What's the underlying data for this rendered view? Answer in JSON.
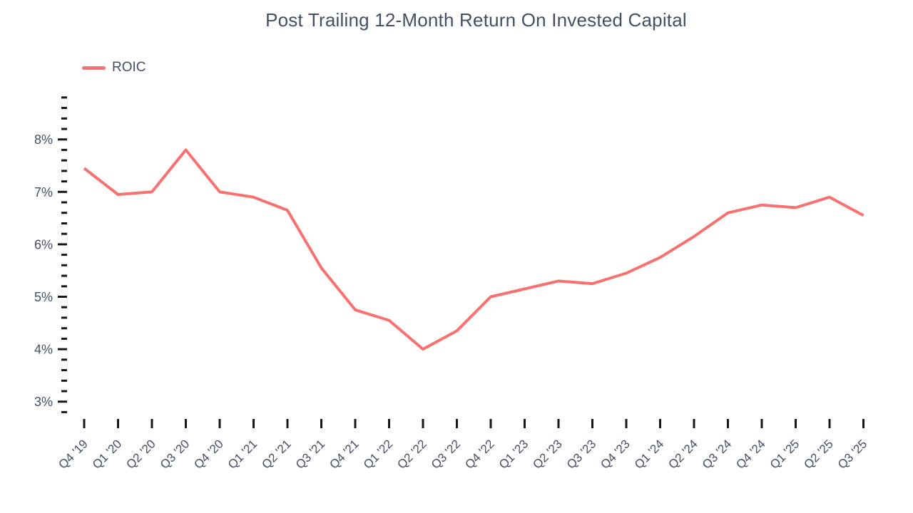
{
  "title": "Post Trailing 12-Month Return On Invested Capital",
  "legend": {
    "items": [
      {
        "label": "ROIC",
        "color": "#F87171"
      }
    ]
  },
  "colors": {
    "line": "#F87171",
    "text": "#454F63",
    "tick": "#171717",
    "background": "#ffffff"
  },
  "chart_data": {
    "type": "line",
    "title": "Post Trailing 12-Month Return On Invested Capital",
    "xlabel": "",
    "ylabel": "",
    "grid": false,
    "legend_position": "top-left",
    "ylim": [
      2.8,
      8.8
    ],
    "y_major_ticks": [
      3,
      4,
      5,
      6,
      7,
      8
    ],
    "y_tick_labels": [
      "3%",
      "4%",
      "5%",
      "6%",
      "7%",
      "8%"
    ],
    "y_minor_step": 0.2,
    "categories": [
      "Q4 '19",
      "Q1 '20",
      "Q2 '20",
      "Q3 '20",
      "Q4 '20",
      "Q1 '21",
      "Q2 '21",
      "Q3 '21",
      "Q4 '21",
      "Q1 '22",
      "Q2 '22",
      "Q3 '22",
      "Q4 '22",
      "Q1 '23",
      "Q2 '23",
      "Q3 '23",
      "Q4 '23",
      "Q1 '24",
      "Q2 '24",
      "Q3 '24",
      "Q4 '24",
      "Q1 '25",
      "Q2 '25",
      "Q3 '25"
    ],
    "series": [
      {
        "name": "ROIC",
        "color": "#F87171",
        "values": [
          7.45,
          6.95,
          7.0,
          7.8,
          7.0,
          6.9,
          6.65,
          5.55,
          4.75,
          4.55,
          4.0,
          4.35,
          5.0,
          5.15,
          5.3,
          5.25,
          5.45,
          5.75,
          6.15,
          6.6,
          6.75,
          6.7,
          6.9,
          6.55
        ]
      }
    ]
  }
}
